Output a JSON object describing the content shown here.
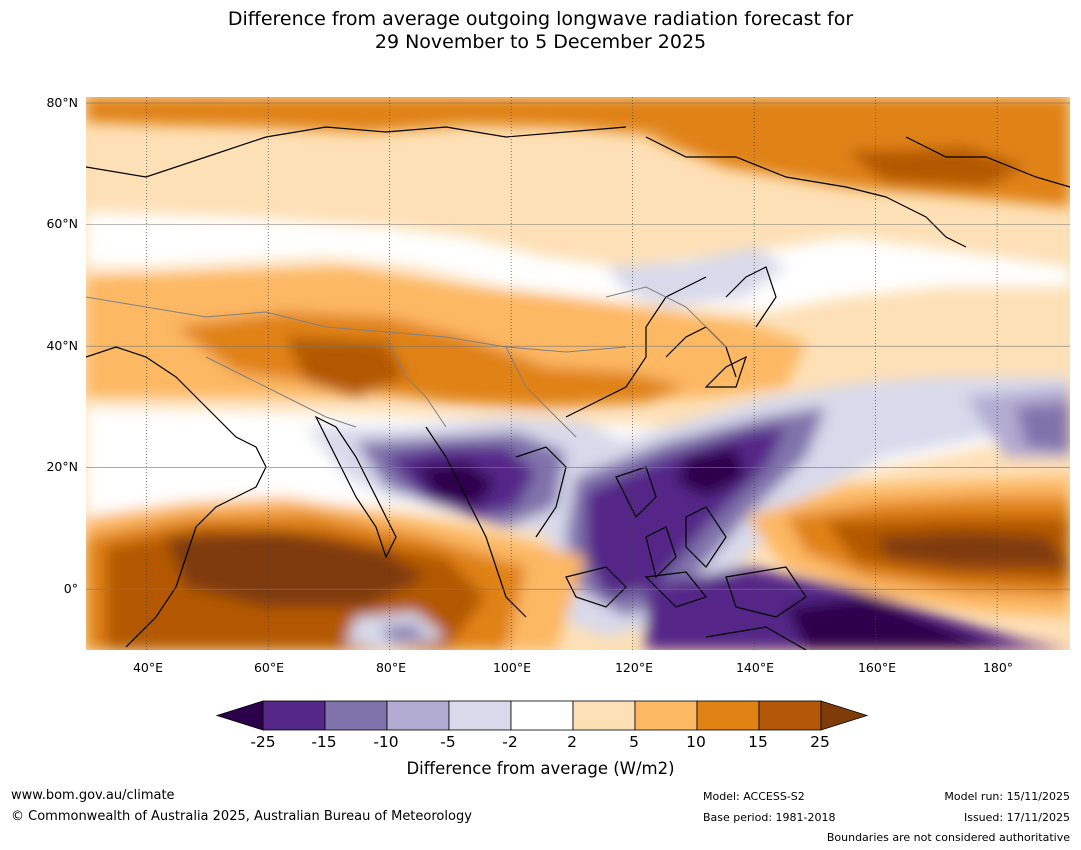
{
  "title": {
    "line1": "Difference from average outgoing longwave radiation forecast for",
    "line2": "29 November to 5 December 2025"
  },
  "map": {
    "latitude_labels": [
      "80°N",
      "60°N",
      "40°N",
      "20°N",
      "0°"
    ],
    "longitude_labels": [
      "40°E",
      "60°E",
      "80°E",
      "100°E",
      "120°E",
      "140°E",
      "160°E",
      "180°"
    ],
    "extent": {
      "lon_min": 30,
      "lon_max": 192,
      "lat_min": -10,
      "lat_max": 81
    },
    "fill_colors": {
      "strong_negative": "#2d004b",
      "very_negative": "#542788",
      "negative": "#8073ac",
      "mild_negative": "#b2abd2",
      "slight_negative": "#d8daeb",
      "neutral": "#ffffff",
      "slight_positive": "#fee0b6",
      "mild_positive": "#fdb863",
      "positive": "#e08214",
      "very_positive": "#b35806",
      "strong_positive": "#7f3b08"
    }
  },
  "colorbar": {
    "ticks": [
      "-25",
      "-15",
      "-10",
      "-5",
      "-2",
      "2",
      "5",
      "10",
      "15",
      "25"
    ],
    "colors": [
      "#542788",
      "#8073ac",
      "#b2abd2",
      "#d8daeb",
      "#ffffff",
      "#fee0b6",
      "#fdb863",
      "#e08214",
      "#b35806"
    ],
    "low_extend_color": "#2d004b",
    "high_extend_color": "#7f3b08",
    "title": "Difference from average (W/m2)"
  },
  "footer": {
    "website": "www.bom.gov.au/climate",
    "copyright": "© Commonwealth of Australia 2025, Australian Bureau of Meteorology",
    "model": "Model: ACCESS-S2",
    "base_period": "Base period: 1981-2018",
    "model_run": "Model run: 15/11/2025",
    "issued": "Issued: 17/11/2025",
    "disclaimer": "Boundaries are not considered authoritative"
  }
}
